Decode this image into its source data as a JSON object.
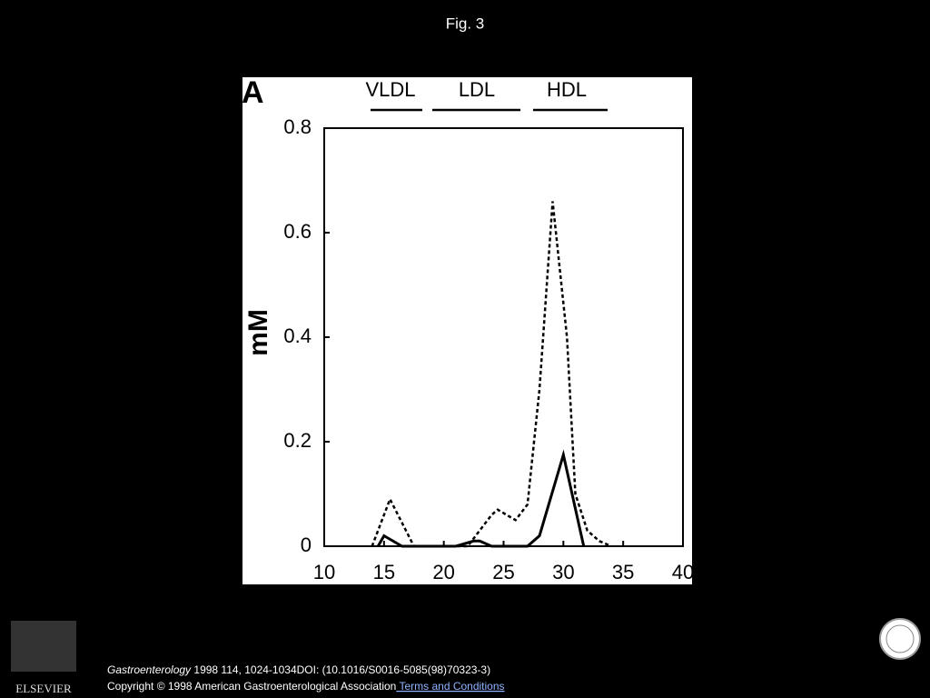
{
  "slide_title": "Fig. 3",
  "chart_data": {
    "type": "line",
    "panel_label": "A",
    "ylabel": "mM",
    "annotations": [
      "VLDL",
      "LDL",
      "HDL"
    ],
    "xlim": [
      10,
      40
    ],
    "xticks": [
      10,
      15,
      20,
      25,
      30,
      35,
      40
    ],
    "ylim": [
      0,
      0.8
    ],
    "yticks": [
      0,
      0.2,
      0.4,
      0.6,
      0.8
    ],
    "series": [
      {
        "color": "#000000",
        "style": "dotted",
        "x": [
          14,
          15.5,
          17.5,
          22,
          24,
          24.5,
          26,
          27,
          28,
          29.1,
          30.3,
          31,
          32,
          33,
          34
        ],
        "values": [
          0,
          0.09,
          0,
          0,
          0.06,
          0.07,
          0.05,
          0.08,
          0.3,
          0.66,
          0.4,
          0.1,
          0.03,
          0.01,
          0
        ]
      },
      {
        "color": "#000000",
        "style": "solid",
        "x": [
          14.5,
          15,
          16.5,
          21,
          22.5,
          23,
          24,
          27,
          28,
          30,
          31.7
        ],
        "values": [
          0,
          0.02,
          0,
          0,
          0.01,
          0.01,
          0,
          0,
          0.02,
          0.175,
          0
        ]
      }
    ]
  },
  "footer": {
    "journal": "Gastroenterology",
    "citation": " 1998 114, 1024-1034DOI: (10.1016/S0016-5085(98)70323-3)",
    "copyright": "Copyright © 1998 American Gastroenterological Association",
    "link": " Terms and Conditions",
    "publisher_logo": "ELSEVIER"
  }
}
